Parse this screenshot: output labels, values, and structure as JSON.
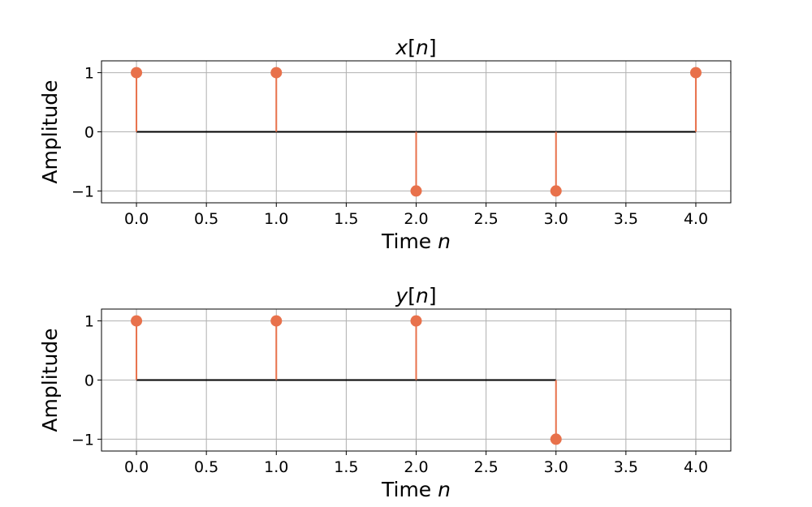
{
  "chart_data": [
    {
      "type": "stem",
      "title": "x[n]",
      "xlabel": "Time n",
      "ylabel": "Amplitude",
      "x": [
        0,
        1,
        2,
        3,
        4
      ],
      "values": [
        1,
        1,
        -1,
        -1,
        1
      ],
      "xlim": [
        -0.25,
        4.25
      ],
      "ylim": [
        -1.2,
        1.2
      ],
      "xticks": [
        "0.0",
        "0.5",
        "1.0",
        "1.5",
        "2.0",
        "2.5",
        "3.0",
        "3.5",
        "4.0"
      ],
      "yticks": [
        "1",
        "0",
        "−1"
      ],
      "grid": true
    },
    {
      "type": "stem",
      "title": "y[n]",
      "xlabel": "Time n",
      "ylabel": "Amplitude",
      "x": [
        0,
        1,
        2,
        3
      ],
      "values": [
        1,
        1,
        1,
        -1
      ],
      "xlim": [
        -0.25,
        4.25
      ],
      "ylim": [
        -1.2,
        1.2
      ],
      "xticks": [
        "0.0",
        "0.5",
        "1.0",
        "1.5",
        "2.0",
        "2.5",
        "3.0",
        "3.5",
        "4.0"
      ],
      "yticks": [
        "1",
        "0",
        "−1"
      ],
      "grid": true
    }
  ],
  "colors": {
    "stem": "#e8714b",
    "baseline": "#000000",
    "grid": "#b0b0b0"
  }
}
